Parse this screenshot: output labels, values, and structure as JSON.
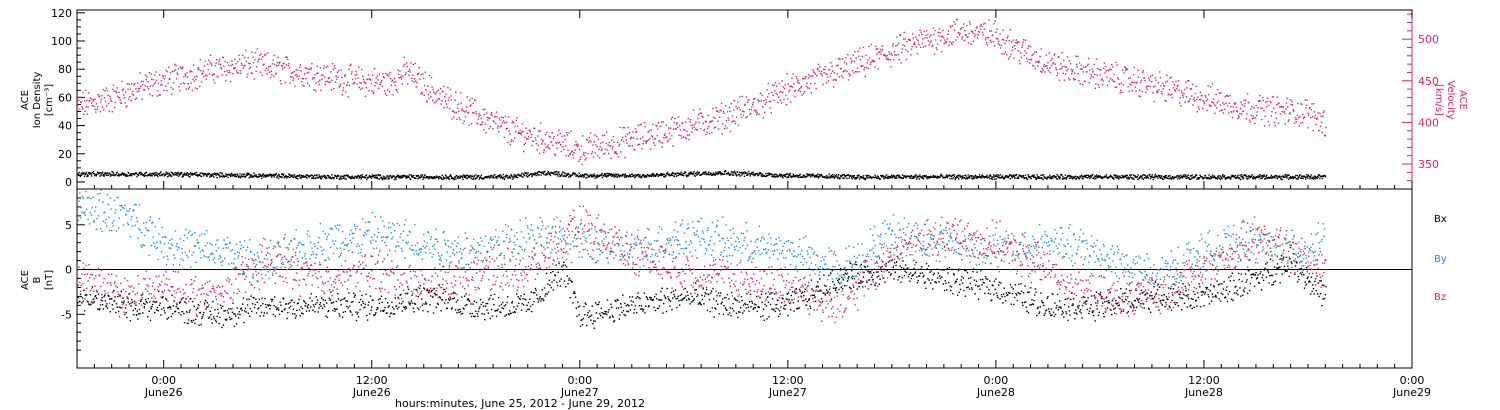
{
  "colors": {
    "black": "#000000",
    "red": "#e0245e",
    "blue": "#1f8fe5"
  },
  "chart_data": [
    {
      "type": "scatter",
      "panel": "top",
      "ylabel_left": [
        "ACE",
        "Ion Density",
        "[cm⁻³]"
      ],
      "ylabel_right": [
        "ACE",
        "Velocity",
        "[km/s]"
      ],
      "ylim_left": [
        -5,
        122
      ],
      "ylim_right": [
        320,
        535
      ],
      "yticks_left": [
        0,
        20,
        40,
        60,
        80,
        100,
        120
      ],
      "yticks_right": [
        350,
        400,
        450,
        500
      ],
      "x_hours_range": [
        -5,
        72
      ],
      "series": [
        {
          "axis": "right",
          "color": "#e0245e",
          "x": [
            -5,
            -3,
            -1,
            1,
            3,
            5,
            7,
            9,
            11,
            13,
            14,
            16,
            18,
            20,
            22,
            24,
            26,
            28,
            30,
            32,
            34,
            36,
            38,
            40,
            42,
            44,
            46,
            48,
            50,
            52,
            54,
            56,
            58,
            60,
            62,
            64,
            66,
            67
          ],
          "y": [
            420,
            430,
            445,
            455,
            465,
            470,
            463,
            458,
            450,
            448,
            462,
            430,
            410,
            390,
            380,
            368,
            375,
            385,
            395,
            405,
            420,
            440,
            455,
            470,
            485,
            500,
            510,
            505,
            480,
            465,
            458,
            450,
            440,
            430,
            420,
            415,
            412,
            400
          ]
        },
        {
          "axis": "left",
          "color": "#000000",
          "x": [
            -5,
            0,
            5,
            10,
            15,
            20,
            22,
            24,
            28,
            32,
            36,
            40,
            44,
            48,
            52,
            56,
            60,
            64,
            67
          ],
          "y": [
            6,
            6,
            5,
            4,
            4,
            4,
            7,
            5,
            5,
            7,
            5,
            4,
            4,
            4,
            4,
            4,
            4,
            4,
            4
          ]
        }
      ]
    },
    {
      "type": "scatter",
      "panel": "bottom",
      "ylabel_left": [
        "ACE",
        "B",
        "[nT]"
      ],
      "ylim": [
        -11,
        9
      ],
      "yticks": [
        -5,
        0,
        5
      ],
      "legend": [
        "Bx",
        "By",
        "Bz"
      ],
      "x_hours_range": [
        -5,
        72
      ],
      "series": [
        {
          "name": "Bx",
          "color": "#000000",
          "x": [
            -5,
            -2,
            0,
            3,
            6,
            9,
            12,
            15,
            18,
            21,
            23,
            24,
            27,
            30,
            33,
            36,
            39,
            42,
            45,
            48,
            51,
            54,
            57,
            60,
            63,
            65,
            67
          ],
          "y": [
            -3,
            -4,
            -4,
            -5,
            -4,
            -4,
            -4,
            -3,
            -4,
            -4,
            0,
            -5,
            -4,
            -3,
            -4,
            -4,
            -1,
            0,
            -1,
            -2,
            -4,
            -4,
            -3,
            -3,
            -1,
            1,
            -3
          ]
        },
        {
          "name": "By",
          "color": "#1f8fe5",
          "x": [
            -5,
            -2,
            0,
            3,
            6,
            9,
            12,
            15,
            18,
            21,
            24,
            27,
            30,
            33,
            36,
            39,
            42,
            45,
            48,
            51,
            54,
            57,
            60,
            63,
            65,
            67
          ],
          "y": [
            7,
            6,
            3,
            2,
            1,
            3,
            4,
            3,
            2,
            4,
            3,
            2,
            4,
            3,
            2,
            0,
            4,
            3,
            2,
            3,
            2,
            -1,
            2,
            3,
            2,
            3
          ]
        },
        {
          "name": "Bz",
          "color": "#e0245e",
          "x": [
            -5,
            -2,
            0,
            3,
            6,
            9,
            12,
            15,
            18,
            21,
            24,
            27,
            30,
            33,
            36,
            39,
            42,
            45,
            48,
            51,
            54,
            57,
            60,
            63,
            65,
            67
          ],
          "y": [
            -1,
            -3,
            -2,
            -3,
            1,
            -1,
            0,
            -2,
            0,
            0,
            5,
            2,
            0,
            -1,
            -2,
            -4,
            2,
            4,
            3,
            0,
            -3,
            -3,
            0,
            4,
            2,
            0
          ]
        }
      ]
    }
  ],
  "xaxis": {
    "ticks": [
      {
        "hour": 0,
        "time": "0:00",
        "day": "June26"
      },
      {
        "hour": 12,
        "time": "12:00",
        "day": "June26"
      },
      {
        "hour": 24,
        "time": "0:00",
        "day": "June27"
      },
      {
        "hour": 36,
        "time": "12:00",
        "day": "June27"
      },
      {
        "hour": 48,
        "time": "0:00",
        "day": "June28"
      },
      {
        "hour": 60,
        "time": "12:00",
        "day": "June28"
      },
      {
        "hour": 72,
        "time": "0:00",
        "day": "June29"
      }
    ],
    "label": "hours:minutes, June 25, 2012 - June 29, 2012"
  }
}
